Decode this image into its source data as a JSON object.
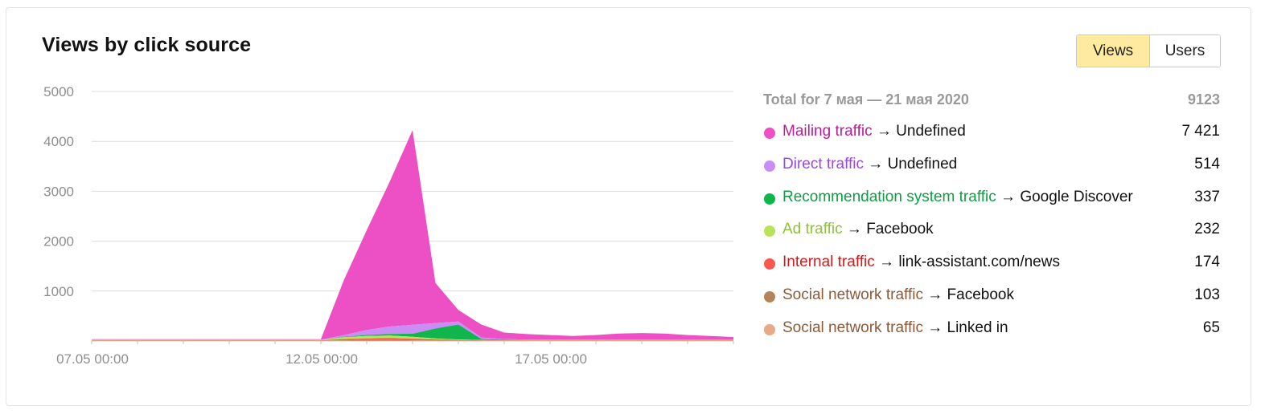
{
  "title": "Views by click source",
  "toggle": {
    "views_label": "Views",
    "users_label": "Users",
    "active": "views"
  },
  "legend": {
    "total_label": "Total for 7 мая — 21 мая 2020",
    "total_value": "9123",
    "items": [
      {
        "source": "Mailing traffic",
        "arrow": " → ",
        "target": "Undefined",
        "value": "7 421",
        "color": "#ed4fc4"
      },
      {
        "source": "Direct traffic",
        "arrow": " → ",
        "target": "Undefined",
        "value": "514",
        "color": "#c98df5"
      },
      {
        "source": "Recommendation system traffic",
        "arrow": " → ",
        "target": "Google Discover",
        "value": "337",
        "color": "#10b54b"
      },
      {
        "source": "Ad traffic",
        "arrow": " → ",
        "target": "Facebook",
        "value": "232",
        "color": "#b9e45a"
      },
      {
        "source": "Internal traffic",
        "arrow": " → ",
        "target": "link-assistant.com/news",
        "value": "174",
        "color": "#f8584e"
      },
      {
        "source": "Social network traffic",
        "arrow": " → ",
        "target": "Facebook",
        "value": "103",
        "color": "#b5835a"
      },
      {
        "source": "Social network traffic",
        "arrow": " → ",
        "target": "Linked in",
        "value": "65",
        "color": "#e8aa86"
      }
    ],
    "text_colors": [
      "#c01a9a",
      "#9c48e0",
      "#0e9e43",
      "#8ec23a",
      "#d21a1a",
      "#8c5a37",
      "#8c5a37"
    ]
  },
  "chart_data": {
    "type": "area",
    "stacked": true,
    "title": "Views by click source",
    "ylim": [
      0,
      5000
    ],
    "yticks": [
      1000,
      2000,
      3000,
      4000,
      5000
    ],
    "grid": true,
    "x": [
      "07.05 00:00",
      "07.05 12:00",
      "08.05 00:00",
      "08.05 12:00",
      "09.05 00:00",
      "09.05 12:00",
      "10.05 00:00",
      "10.05 12:00",
      "11.05 00:00",
      "11.05 12:00",
      "12.05 00:00",
      "12.05 12:00",
      "13.05 00:00",
      "13.05 12:00",
      "14.05 00:00",
      "14.05 12:00",
      "15.05 00:00",
      "15.05 12:00",
      "16.05 00:00",
      "16.05 12:00",
      "17.05 00:00",
      "17.05 12:00",
      "18.05 00:00",
      "18.05 12:00",
      "19.05 00:00",
      "19.05 12:00",
      "20.05 00:00",
      "20.05 12:00",
      "21.05 00:00"
    ],
    "xticks": [
      "07.05 00:00",
      "12.05 00:00",
      "17.05 00:00"
    ],
    "series": [
      {
        "name": "Social network traffic → Linked in",
        "values": [
          5,
          5,
          5,
          5,
          5,
          5,
          5,
          5,
          5,
          5,
          5,
          5,
          5,
          5,
          5,
          5,
          5,
          5,
          2,
          2,
          2,
          2,
          2,
          2,
          2,
          2,
          2,
          2,
          2
        ]
      },
      {
        "name": "Social network traffic → Facebook",
        "values": [
          5,
          5,
          5,
          5,
          5,
          5,
          5,
          5,
          5,
          5,
          5,
          10,
          15,
          15,
          10,
          5,
          5,
          5,
          2,
          2,
          2,
          2,
          2,
          2,
          2,
          2,
          2,
          2,
          2
        ]
      },
      {
        "name": "Internal traffic → link-assistant.com/news",
        "values": [
          5,
          5,
          5,
          5,
          5,
          5,
          5,
          5,
          5,
          5,
          5,
          20,
          30,
          40,
          30,
          20,
          10,
          5,
          5,
          5,
          5,
          5,
          5,
          5,
          5,
          5,
          5,
          5,
          5
        ]
      },
      {
        "name": "Ad traffic → Facebook",
        "values": [
          5,
          5,
          5,
          5,
          5,
          5,
          5,
          5,
          5,
          5,
          5,
          40,
          50,
          50,
          40,
          20,
          10,
          5,
          5,
          5,
          5,
          5,
          5,
          5,
          5,
          5,
          5,
          5,
          5
        ]
      },
      {
        "name": "Recommendation system traffic → Google Discover",
        "values": [
          0,
          0,
          0,
          0,
          0,
          0,
          0,
          0,
          0,
          0,
          0,
          10,
          20,
          30,
          60,
          200,
          300,
          20,
          10,
          5,
          5,
          5,
          5,
          5,
          5,
          5,
          5,
          5,
          5
        ]
      },
      {
        "name": "Direct traffic → Undefined",
        "values": [
          5,
          5,
          5,
          5,
          5,
          5,
          5,
          5,
          5,
          5,
          5,
          30,
          100,
          150,
          180,
          110,
          60,
          30,
          15,
          10,
          10,
          10,
          10,
          10,
          10,
          10,
          10,
          10,
          10
        ]
      },
      {
        "name": "Mailing traffic → Undefined",
        "values": [
          10,
          10,
          10,
          10,
          10,
          10,
          10,
          10,
          10,
          10,
          10,
          1100,
          2000,
          2900,
          3900,
          800,
          230,
          260,
          130,
          110,
          90,
          70,
          90,
          120,
          130,
          120,
          90,
          70,
          50
        ]
      }
    ]
  }
}
